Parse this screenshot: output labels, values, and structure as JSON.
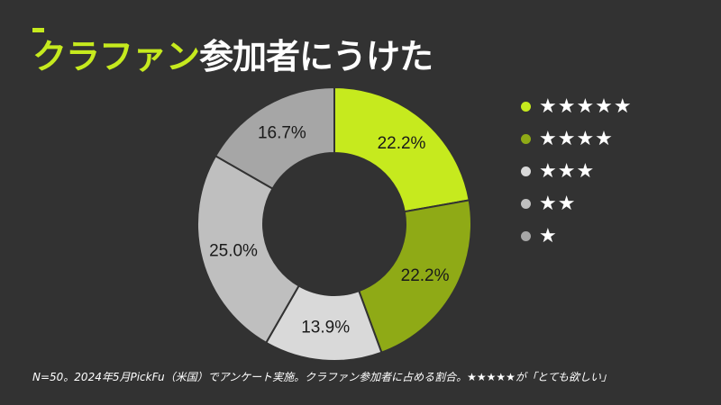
{
  "title": {
    "accent": "クラファン",
    "rest": "参加者にうけた"
  },
  "footnote": "N=50。2024年5月PickFu（米国）でアンケート実施。クラファン参加者に占める割合。★★★★★が「とても欲しい」",
  "chart_data": {
    "type": "pie",
    "title": "クラファン参加者にうけた",
    "donut": true,
    "categories": [
      "★★★★★",
      "★★★★",
      "★★★",
      "★★",
      "★"
    ],
    "values": [
      22.2,
      22.2,
      13.9,
      25.0,
      16.7
    ],
    "labels": [
      "22.2%",
      "22.2%",
      "13.9%",
      "25.0%",
      "16.7%"
    ],
    "colors": [
      "#c6ea1e",
      "#8faa16",
      "#d9d9d9",
      "#bfbfbf",
      "#a6a6a6"
    ],
    "legend_placement": "right"
  }
}
